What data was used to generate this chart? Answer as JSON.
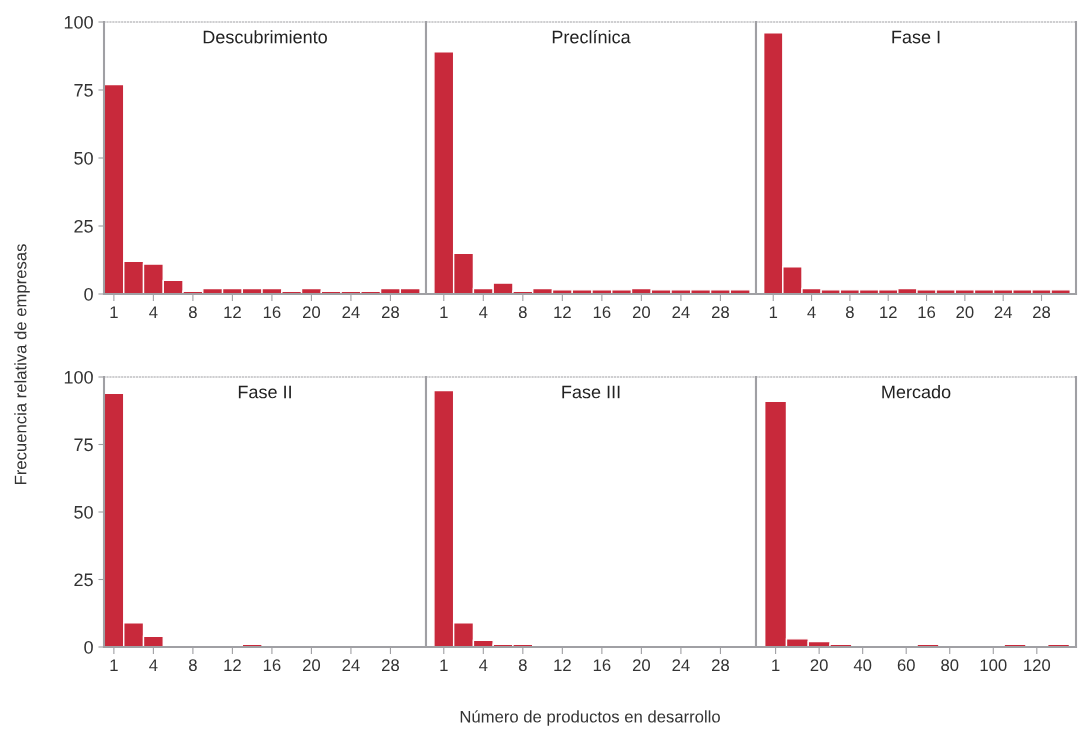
{
  "chart_data": [
    {
      "type": "bar",
      "title": "Descubrimiento",
      "ylabel": "Frecuencia relativa de empresas",
      "color": "#c8293b",
      "categories": [
        "1",
        null,
        "4",
        null,
        "8",
        null,
        "12",
        null,
        "16",
        null,
        "20",
        null,
        "24",
        null,
        "28",
        null
      ],
      "values": [
        77,
        12,
        11,
        5,
        1,
        2,
        2,
        2,
        2,
        1,
        2,
        1,
        1,
        1,
        2,
        2
      ],
      "ylim": [
        0,
        100
      ],
      "yticks": [
        0,
        25,
        50,
        75,
        100
      ]
    },
    {
      "type": "bar",
      "title": "Preclínica",
      "color": "#c8293b",
      "categories": [
        "1",
        null,
        "4",
        null,
        "8",
        null,
        "12",
        null,
        "16",
        null,
        "20",
        null,
        "24",
        null,
        "28",
        null
      ],
      "values": [
        89,
        15,
        2,
        4,
        1,
        2,
        1.5,
        1.5,
        1.5,
        1.5,
        2,
        1.5,
        1.5,
        1.5,
        1.5,
        1.5
      ],
      "ylim": [
        0,
        100
      ],
      "yticks": [
        0,
        25,
        50,
        75,
        100
      ],
      "tick_labels": "x"
    },
    {
      "type": "bar",
      "title": "Fase I",
      "color": "#c8293b",
      "categories": [
        "1",
        null,
        "4",
        null,
        "8",
        null,
        "12",
        null,
        "16",
        null,
        "20",
        null,
        "24",
        null,
        "28",
        null
      ],
      "values": [
        96,
        10,
        2,
        1.5,
        1.5,
        1.5,
        1.5,
        2,
        1.5,
        1.5,
        1.5,
        1.5,
        1.5,
        1.5,
        1.5,
        1.5
      ],
      "ylim": [
        0,
        100
      ],
      "yticks": [
        0,
        25,
        50,
        75,
        100
      ],
      "tick_labels": "x"
    },
    {
      "type": "bar",
      "title": "Fase II",
      "color": "#c8293b",
      "categories": [
        "1",
        null,
        "4",
        null,
        "8",
        null,
        "12",
        null,
        "16",
        null,
        "20",
        null,
        "24",
        null,
        "28",
        null
      ],
      "values": [
        94,
        9,
        4,
        0,
        0,
        0,
        0,
        1,
        0,
        0,
        0,
        0,
        0,
        0,
        0,
        0
      ],
      "ylim": [
        0,
        100
      ],
      "yticks": [
        0,
        25,
        50,
        75,
        100
      ]
    },
    {
      "type": "bar",
      "title": "Fase III",
      "xlabel": "Número de productos en desarrollo",
      "color": "#c8293b",
      "categories": [
        "1",
        null,
        "4",
        null,
        "8",
        null,
        "12",
        null,
        "16",
        null,
        "20",
        null,
        "24",
        null,
        "28",
        null
      ],
      "values": [
        95,
        9,
        2.5,
        1,
        1,
        0,
        0,
        0,
        0,
        0,
        0,
        0,
        0,
        0,
        0,
        0
      ],
      "ylim": [
        0,
        100
      ],
      "yticks": [
        0,
        25,
        50,
        75,
        100
      ],
      "tick_labels": "x"
    },
    {
      "type": "bar",
      "title": "Mercado",
      "color": "#c8293b",
      "categories": [
        "1",
        null,
        "20",
        null,
        "40",
        null,
        "60",
        null,
        "80",
        null,
        "100",
        null,
        "120",
        null
      ],
      "values": [
        91,
        3,
        2,
        1,
        0,
        0,
        0,
        1,
        0,
        0,
        0,
        1,
        0,
        1
      ],
      "ylim": [
        0,
        100
      ],
      "yticks": [
        0,
        25,
        50,
        75,
        100
      ],
      "tick_labels": "x"
    }
  ]
}
